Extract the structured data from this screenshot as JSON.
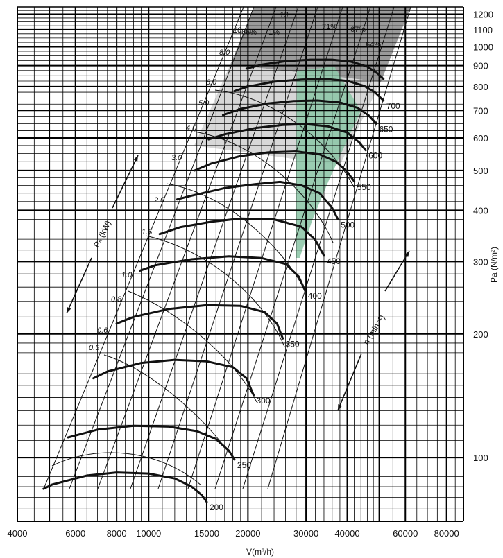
{
  "chart_data": {
    "type": "line",
    "title": "",
    "xlabel": "V(m³/h)",
    "ylabel": "Pa (N/m²)",
    "x_scale": "log",
    "y_scale": "log",
    "xlim": [
      4000,
      90000
    ],
    "ylim": [
      70,
      1250
    ],
    "grid": true,
    "x_ticks": [
      {
        "value": 4000,
        "label": "4000"
      },
      {
        "value": 6000,
        "label": "6000"
      },
      {
        "value": 8000,
        "label": "8000"
      },
      {
        "value": 10000,
        "label": "10000"
      },
      {
        "value": 15000,
        "label": "15000"
      },
      {
        "value": 20000,
        "label": "20000"
      },
      {
        "value": 30000,
        "label": "30000"
      },
      {
        "value": 40000,
        "label": "40000"
      },
      {
        "value": 60000,
        "label": "60000"
      },
      {
        "value": 80000,
        "label": "80000"
      }
    ],
    "y_ticks": [
      {
        "value": 100,
        "label": "100"
      },
      {
        "value": 200,
        "label": "200"
      },
      {
        "value": 300,
        "label": "300"
      },
      {
        "value": 400,
        "label": "400"
      },
      {
        "value": 500,
        "label": "500"
      },
      {
        "value": 600,
        "label": "600"
      },
      {
        "value": 700,
        "label": "700"
      },
      {
        "value": 800,
        "label": "800"
      },
      {
        "value": 900,
        "label": "900"
      },
      {
        "value": 1000,
        "label": "1000"
      },
      {
        "value": 1100,
        "label": "1100"
      },
      {
        "value": 1200,
        "label": "1200"
      }
    ],
    "speed_axis_label": "n (min⁻¹)",
    "power_axis_label": "Pₙ (kW)",
    "speed_curves": [
      {
        "label": "200",
        "points": [
          [
            4800,
            84
          ],
          [
            5100,
            86
          ],
          [
            6500,
            90.5
          ],
          [
            8000,
            92
          ],
          [
            10000,
            91.5
          ],
          [
            12000,
            89
          ],
          [
            13500,
            85
          ],
          [
            14500,
            81
          ],
          [
            15000,
            78
          ]
        ]
      },
      {
        "label": "250",
        "points": [
          [
            5700,
            112
          ],
          [
            7000,
            117
          ],
          [
            9000,
            119.5
          ],
          [
            11500,
            119
          ],
          [
            14000,
            116
          ],
          [
            16000,
            111
          ],
          [
            17500,
            104
          ],
          [
            18200,
            99
          ]
        ]
      },
      {
        "label": "300",
        "points": [
          [
            6800,
            156
          ],
          [
            7500,
            162
          ],
          [
            9500,
            170
          ],
          [
            12000,
            173
          ],
          [
            15000,
            171.5
          ],
          [
            18000,
            166
          ],
          [
            19800,
            156
          ],
          [
            20800,
            142
          ]
        ]
      },
      {
        "label": "350",
        "points": [
          [
            8000,
            212
          ],
          [
            9000,
            220
          ],
          [
            11500,
            230
          ],
          [
            15000,
            235
          ],
          [
            19000,
            234
          ],
          [
            22500,
            226
          ],
          [
            24500,
            212
          ],
          [
            25500,
            195
          ]
        ]
      },
      {
        "label": "400",
        "points": [
          [
            9400,
            285
          ],
          [
            10500,
            294
          ],
          [
            13500,
            304
          ],
          [
            17500,
            309
          ],
          [
            22000,
            306
          ],
          [
            26000,
            296
          ],
          [
            28500,
            276
          ],
          [
            29800,
            255
          ]
        ]
      },
      {
        "label": "450",
        "points": [
          [
            10800,
            350
          ],
          [
            12500,
            364
          ],
          [
            15500,
            375
          ],
          [
            19000,
            382
          ],
          [
            24000,
            380
          ],
          [
            29000,
            365
          ],
          [
            32000,
            339
          ],
          [
            34000,
            310
          ]
        ]
      },
      {
        "label": "500",
        "points": [
          [
            12200,
            425
          ],
          [
            13500,
            434
          ],
          [
            17000,
            453
          ],
          [
            21000,
            463
          ],
          [
            25000,
            469
          ],
          [
            29000,
            460
          ],
          [
            33000,
            440
          ],
          [
            36000,
            405
          ],
          [
            37500,
            380
          ]
        ]
      },
      {
        "label": "550",
        "points": [
          [
            13800,
            500
          ],
          [
            15500,
            520
          ],
          [
            19000,
            542
          ],
          [
            23000,
            553
          ],
          [
            28000,
            556
          ],
          [
            33000,
            547
          ],
          [
            37000,
            525
          ],
          [
            40000,
            496
          ],
          [
            42000,
            470
          ]
        ]
      },
      {
        "label": "600",
        "points": [
          [
            15200,
            595
          ],
          [
            17000,
            612
          ],
          [
            21000,
            634
          ],
          [
            25500,
            645
          ],
          [
            30000,
            648
          ],
          [
            35000,
            640
          ],
          [
            40000,
            618
          ],
          [
            43500,
            585
          ],
          [
            45500,
            560
          ]
        ]
      },
      {
        "label": "650",
        "points": [
          [
            16800,
            682
          ],
          [
            19000,
            706
          ],
          [
            23000,
            728
          ],
          [
            27500,
            738
          ],
          [
            32500,
            740
          ],
          [
            38000,
            732
          ],
          [
            43000,
            710
          ],
          [
            46500,
            680
          ],
          [
            49000,
            650
          ]
        ]
      },
      {
        "label": "700",
        "points": [
          [
            18200,
            780
          ],
          [
            20000,
            800
          ],
          [
            24000,
            822
          ],
          [
            29000,
            832
          ],
          [
            34000,
            836
          ],
          [
            40000,
            826
          ],
          [
            45000,
            803
          ],
          [
            48500,
            775
          ],
          [
            51500,
            740
          ]
        ]
      },
      {
        "label": "",
        "points": [
          [
            19800,
            885
          ],
          [
            22000,
            904
          ],
          [
            26000,
            922
          ],
          [
            31000,
            930
          ],
          [
            36000,
            930
          ],
          [
            41000,
            920
          ],
          [
            46000,
            895
          ],
          [
            49500,
            860
          ],
          [
            51500,
            835
          ]
        ]
      }
    ],
    "power_labels": [
      "0.5",
      "0.6",
      "0.8",
      "1.0",
      "1.5",
      "2.0",
      "3.0",
      "4.0",
      "5.0",
      "6.0",
      "8.0",
      "10",
      "13"
    ],
    "efficiency_labels": [
      "66%",
      "71%",
      "71%",
      "67%",
      "64%"
    ],
    "speed_arrow_annotations": [
      "n (min⁻¹)"
    ],
    "power_arrow_annotations": [
      "Pₙ (kW)"
    ],
    "colors": {
      "grid": "#000000",
      "curve": "#111111",
      "region_high": "#9a9a9a",
      "region_mid": "#d0d0d0",
      "region_band": "#8fc7a8"
    }
  }
}
